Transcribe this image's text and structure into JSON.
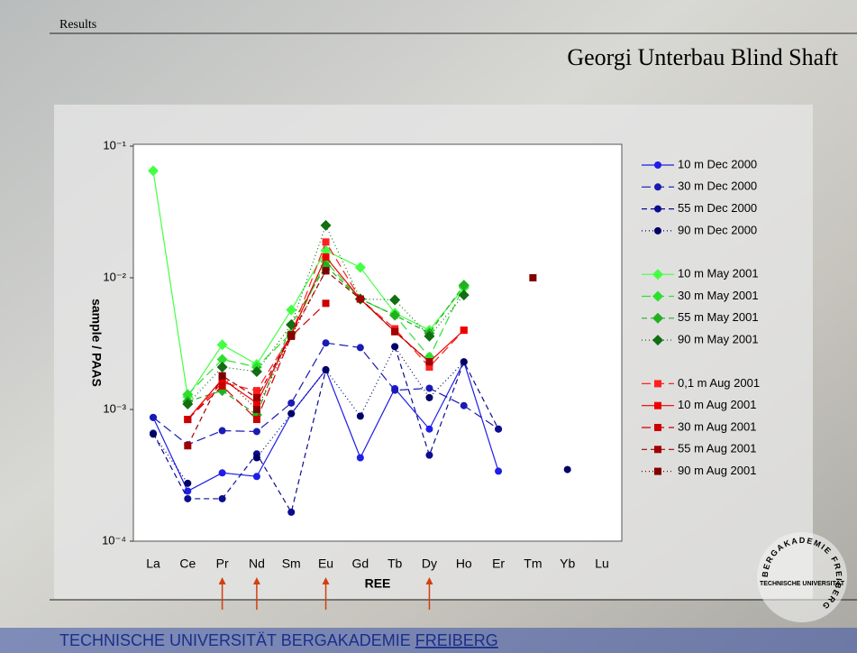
{
  "slide": {
    "section": "Results",
    "title": "Georgi Unterbau Blind Shaft",
    "footer": "TECHNISCHE UNIVERSITÄT BERGAKADEMIE",
    "footer_link": "FREIBERG",
    "logo": {
      "center": "TECHNISCHE UNIVERSITÄT",
      "ring": "BERGAKADEMIE FREIBERG"
    }
  },
  "chart_data": {
    "type": "line",
    "x_label": "REE",
    "y_label": "sample / PAAS",
    "categories": [
      "La",
      "Ce",
      "Pr",
      "Nd",
      "Sm",
      "Eu",
      "Gd",
      "Tb",
      "Dy",
      "Ho",
      "Er",
      "Tm",
      "Yb",
      "Lu"
    ],
    "log_scale": true,
    "ylim": [
      0.0001,
      0.1
    ],
    "yticks": [
      {
        "value": 0.0001,
        "label": "10⁻⁴"
      },
      {
        "value": 0.001,
        "label": "10⁻³"
      },
      {
        "value": 0.01,
        "label": "10⁻²"
      },
      {
        "value": 0.1,
        "label": "10⁻¹"
      }
    ],
    "legend": "right",
    "series": [
      {
        "name": "10 m Dec 2000",
        "color": "#1e1ee6",
        "line_style": "solid",
        "marker": "circle",
        "values": [
          0.00087,
          0.00024,
          0.00033,
          0.00031,
          0.00093,
          0.002,
          0.00043,
          0.00144,
          0.00071,
          0.0023,
          0.00034,
          null,
          null,
          null
        ]
      },
      {
        "name": "30 m Dec 2000",
        "color": "#1a1ab4",
        "line_style": "dashed",
        "marker": "circle",
        "values": [
          0.00087,
          0.00054,
          0.00069,
          0.00068,
          0.00112,
          0.0032,
          0.00295,
          0.0014,
          0.00145,
          0.00107,
          0.00071,
          null,
          null,
          null
        ]
      },
      {
        "name": "55 m Dec 2000",
        "color": "#0c0c90",
        "line_style": "dashed-short",
        "marker": "circle",
        "values": [
          0.00066,
          0.00021,
          0.00021,
          0.00046,
          0.000166,
          0.002,
          null,
          0.003,
          0.00045,
          0.0023,
          0.00071,
          null,
          null,
          null
        ]
      },
      {
        "name": "90 m Dec 2000",
        "color": "#000066",
        "line_style": "dotted",
        "marker": "circle",
        "values": [
          0.00065,
          0.000275,
          null,
          0.00043,
          0.00093,
          0.002,
          0.00089,
          0.003,
          0.00123,
          0.0023,
          null,
          null,
          0.00035,
          null
        ]
      },
      {
        "name": "10 m May 2001",
        "color": "#44ff44",
        "line_style": "solid",
        "marker": "diamond",
        "values": [
          0.065,
          0.00125,
          0.0031,
          0.0022,
          0.0057,
          0.0161,
          0.012,
          0.0054,
          0.004,
          0.0084,
          null,
          null,
          null,
          null
        ]
      },
      {
        "name": "30 m May 2001",
        "color": "#2ee02e",
        "line_style": "dashed",
        "marker": "diamond",
        "values": [
          null,
          0.0013,
          0.0024,
          0.0021,
          0.0038,
          0.0133,
          0.0069,
          0.0052,
          0.0025,
          0.0086,
          null,
          null,
          null,
          null
        ]
      },
      {
        "name": "55 m May 2001",
        "color": "#22b022",
        "line_style": "dashed-short",
        "marker": "diamond",
        "values": [
          null,
          0.00115,
          0.00139,
          0.00091,
          0.0044,
          0.0123,
          0.0069,
          0.0052,
          0.0038,
          0.0088,
          null,
          null,
          null,
          null
        ]
      },
      {
        "name": "90 m May 2001",
        "color": "#116e11",
        "line_style": "dotted",
        "marker": "diamond",
        "values": [
          null,
          0.0011,
          0.0021,
          0.00194,
          0.0044,
          0.025,
          0.0069,
          0.0068,
          0.0036,
          0.0074,
          null,
          null,
          null,
          null
        ]
      },
      {
        "name": "0,1 m Aug 2001",
        "color": "#ff2020",
        "line_style": "dashed",
        "marker": "square",
        "values": [
          null,
          0.00084,
          0.0016,
          0.00139,
          0.0037,
          0.0187,
          0.0069,
          0.0041,
          0.0021,
          0.004,
          null,
          null,
          null,
          null
        ]
      },
      {
        "name": "10 m Aug 2001",
        "color": "#ee0000",
        "line_style": "solid",
        "marker": "square",
        "values": [
          null,
          0.00084,
          0.0017,
          0.00112,
          0.0037,
          0.0144,
          0.0069,
          0.0039,
          0.0023,
          0.004,
          null,
          null,
          null,
          null
        ]
      },
      {
        "name": "30 m Aug 2001",
        "color": "#cc0000",
        "line_style": "dashed",
        "marker": "square",
        "values": [
          null,
          0.00084,
          0.00151,
          0.00084,
          0.0036,
          0.0064,
          null,
          null,
          null,
          null,
          null,
          null,
          null,
          null
        ]
      },
      {
        "name": "55 m Aug 2001",
        "color": "#a00000",
        "line_style": "dashed-short",
        "marker": "square",
        "values": [
          null,
          0.00053,
          0.0018,
          0.00123,
          0.0037,
          0.0113,
          0.0069,
          0.0039,
          0.0023,
          null,
          null,
          null,
          null,
          null
        ]
      },
      {
        "name": "90 m Aug 2001",
        "color": "#800000",
        "line_style": "dotted",
        "marker": "square",
        "values": [
          null,
          null,
          0.0018,
          0.001,
          0.0036,
          0.0113,
          null,
          null,
          null,
          null,
          null,
          0.01,
          null,
          null
        ]
      }
    ]
  }
}
